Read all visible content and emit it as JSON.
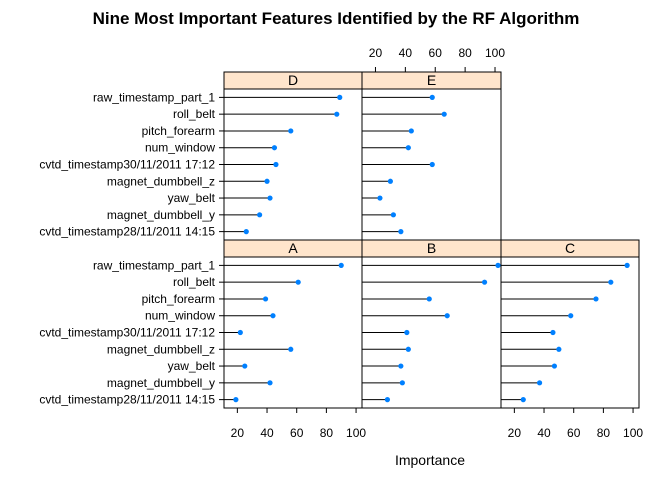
{
  "chart_data": {
    "type": "dotplot",
    "title": "Nine Most Important Features Identified by the RF Algorithm",
    "xlabel": "Importance",
    "xlim": [
      11,
      104
    ],
    "xticks": [
      20,
      40,
      60,
      80,
      100
    ],
    "categories": [
      "raw_timestamp_part_1",
      "roll_belt",
      "pitch_forearm",
      "num_window",
      "cvtd_timestamp30/11/2011 17:12",
      "magnet_dumbbell_z",
      "yaw_belt",
      "magnet_dumbbell_y",
      "cvtd_timestamp28/11/2011 14:15"
    ],
    "panels": [
      {
        "name": "D",
        "values": [
          89,
          87,
          56,
          45,
          46,
          40,
          42,
          35,
          26
        ]
      },
      {
        "name": "E",
        "values": [
          58,
          66,
          44,
          42,
          58,
          30,
          23,
          32,
          37
        ]
      },
      {
        "name": "A",
        "values": [
          90,
          61,
          39,
          44,
          22,
          56,
          25,
          42,
          19
        ]
      },
      {
        "name": "B",
        "values": [
          102,
          93,
          56,
          68,
          41,
          42,
          37,
          38,
          28
        ]
      },
      {
        "name": "C",
        "values": [
          96,
          85,
          75,
          58,
          46,
          50,
          47,
          37,
          26
        ]
      }
    ]
  },
  "colors": {
    "point": "#0080ff",
    "strip_bg": "#ffe5cc",
    "line": "#000000"
  }
}
